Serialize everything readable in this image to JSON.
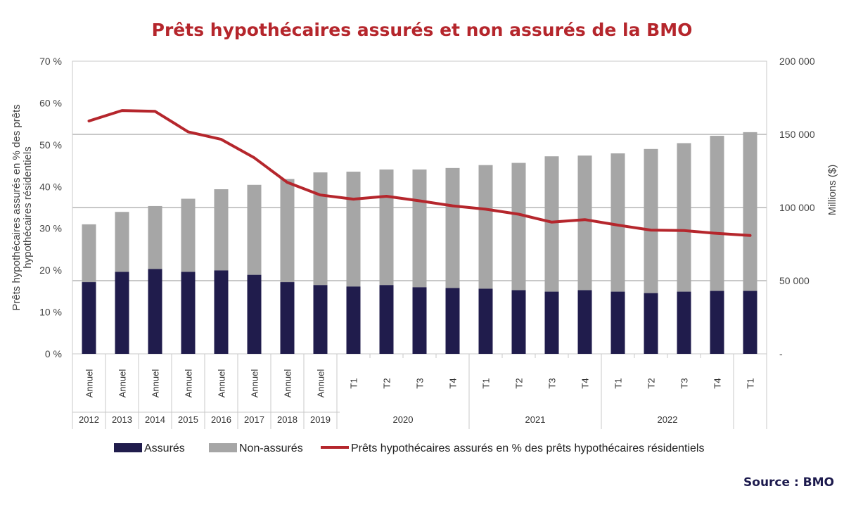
{
  "title": "Prêts hypothécaires assurés et non assurés de la BMO",
  "source": "Source : BMO",
  "colors": {
    "title": "#b5262c",
    "insured": "#201c4c",
    "uninsured": "#a6a6a6",
    "line": "#b5262c",
    "grid": "#c8c8c8"
  },
  "chart_data": {
    "type": "bar",
    "stacked": true,
    "title": "Prêts hypothécaires assurés et non assurés de la BMO",
    "y_left_label_lines": [
      "Prêts hypothécaires assurés en % des prêts",
      "hypothécaires résidentiels"
    ],
    "y_right_label": "Millions ($)",
    "y_left_ticks": [
      "0 %",
      "10 %",
      "20 %",
      "30 %",
      "40 %",
      "50 %",
      "60 %",
      "70 %"
    ],
    "y_right_ticks": [
      "-",
      "50 000",
      "100 000",
      "150 000",
      "200 000"
    ],
    "y_left_range": [
      0,
      70
    ],
    "y_right_range": [
      0,
      200000
    ],
    "categories": [
      "Annuel",
      "Annuel",
      "Annuel",
      "Annuel",
      "Annuel",
      "Annuel",
      "Annuel",
      "Annuel",
      "T1",
      "T2",
      "T3",
      "T4",
      "T1",
      "T2",
      "T3",
      "T4",
      "T1",
      "T2",
      "T3",
      "T4",
      "T1"
    ],
    "groups": [
      {
        "label": "2012",
        "span": 1
      },
      {
        "label": "2013",
        "span": 1
      },
      {
        "label": "2014",
        "span": 1
      },
      {
        "label": "2015",
        "span": 1
      },
      {
        "label": "2016",
        "span": 1
      },
      {
        "label": "2017",
        "span": 1
      },
      {
        "label": "2018",
        "span": 1
      },
      {
        "label": "2019",
        "span": 1
      },
      {
        "label": "2020",
        "span": 4
      },
      {
        "label": "2021",
        "span": 4
      },
      {
        "label": "2022",
        "span": 4
      },
      {
        "label": "",
        "span": 1
      }
    ],
    "series": [
      {
        "name": "Assurés",
        "type": "bar",
        "axis": "right",
        "values": [
          49000,
          56000,
          58000,
          56000,
          57000,
          54000,
          49000,
          47000,
          46000,
          47000,
          45500,
          45000,
          44500,
          43500,
          42500,
          43500,
          42500,
          41500,
          42500,
          43000,
          43000
        ]
      },
      {
        "name": "Non-assurés",
        "type": "bar",
        "axis": "right",
        "values": [
          39500,
          41000,
          43000,
          50000,
          55500,
          61500,
          70500,
          77000,
          78500,
          79000,
          80500,
          82000,
          84500,
          87000,
          92500,
          92000,
          94500,
          98500,
          101500,
          106000,
          108500
        ]
      },
      {
        "name": "Prêts hypothécaires assurés en % des prêts hypothécaires résidentiels",
        "type": "line",
        "axis": "left",
        "values": [
          55.7,
          58.2,
          58.0,
          53.1,
          51.3,
          46.9,
          41.0,
          38.0,
          37.0,
          37.7,
          36.6,
          35.4,
          34.6,
          33.4,
          31.5,
          32.1,
          30.8,
          29.6,
          29.5,
          28.8,
          28.3
        ]
      }
    ],
    "legend": {
      "position": "bottom"
    }
  }
}
